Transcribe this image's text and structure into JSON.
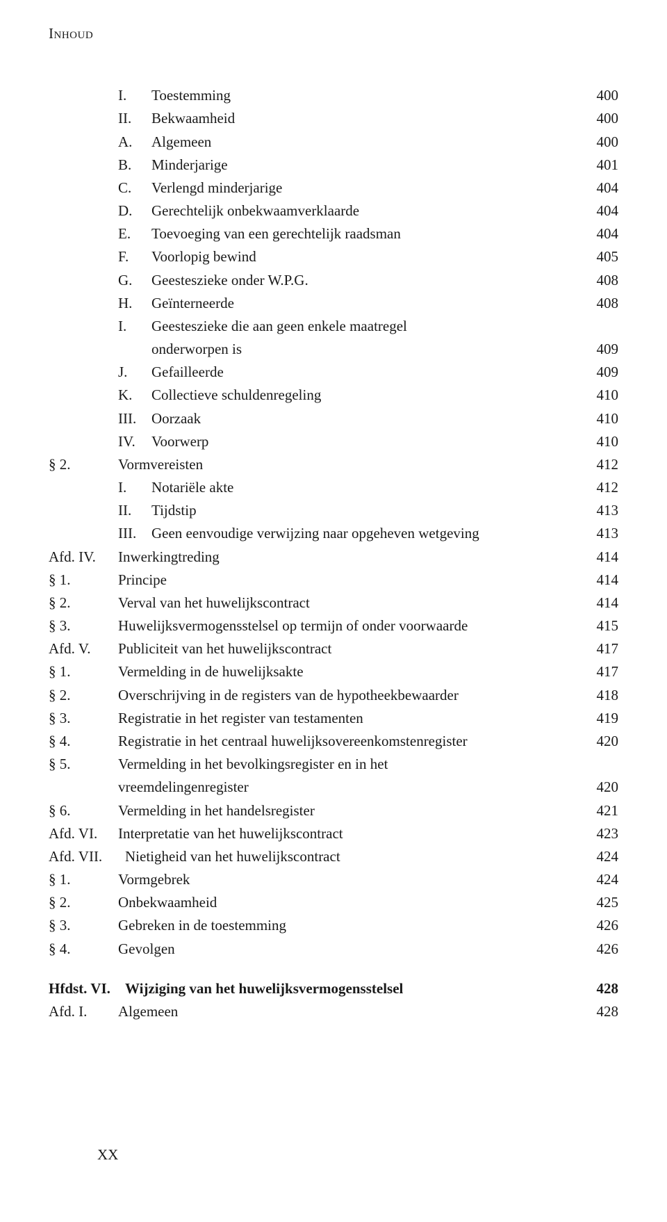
{
  "header": "Inhoud",
  "footer": "XX",
  "rows": [
    {
      "marker": "",
      "sub": "I.",
      "title": "Toestemming",
      "page": "400"
    },
    {
      "marker": "",
      "sub": "II.",
      "title": "Bekwaamheid",
      "page": "400"
    },
    {
      "marker": "",
      "sub": "A.",
      "title": "Algemeen",
      "page": "400"
    },
    {
      "marker": "",
      "sub": "B.",
      "title": "Minderjarige",
      "page": "401"
    },
    {
      "marker": "",
      "sub": "C.",
      "title": "Verlengd minderjarige",
      "page": "404"
    },
    {
      "marker": "",
      "sub": "D.",
      "title": "Gerechtelijk onbekwaamverklaarde",
      "page": "404"
    },
    {
      "marker": "",
      "sub": "E.",
      "title": "Toevoeging van een gerechtelijk raadsman",
      "page": "404"
    },
    {
      "marker": "",
      "sub": "F.",
      "title": "Voorlopig bewind",
      "page": "405"
    },
    {
      "marker": "",
      "sub": "G.",
      "title": "Geesteszieke onder W.P.G.",
      "page": "408"
    },
    {
      "marker": "",
      "sub": "H.",
      "title": "Geïnterneerde",
      "page": "408"
    },
    {
      "marker": "",
      "sub": "I.",
      "title": "Geesteszieke die aan geen enkele maatregel",
      "page": ""
    },
    {
      "marker": "",
      "sub": "",
      "title": "onderworpen is",
      "page": "409"
    },
    {
      "marker": "",
      "sub": "J.",
      "title": "Gefailleerde",
      "page": "409"
    },
    {
      "marker": "",
      "sub": "K.",
      "title": "Collectieve schuldenregeling",
      "page": "410"
    },
    {
      "marker": "",
      "sub": "III.",
      "title": "Oorzaak",
      "page": "410"
    },
    {
      "marker": "",
      "sub": "IV.",
      "title": "Voorwerp",
      "page": "410"
    },
    {
      "marker": "§ 2.",
      "sub": "",
      "title": "Vormvereisten",
      "page": "412"
    },
    {
      "marker": "",
      "sub": "I.",
      "title": "Notariële akte",
      "page": "412"
    },
    {
      "marker": "",
      "sub": "II.",
      "title": "Tijdstip",
      "page": "413"
    },
    {
      "marker": "",
      "sub": "III.",
      "title": "Geen eenvoudige verwijzing naar opgeheven wetgeving",
      "page": "413"
    },
    {
      "marker": "Afd. IV.",
      "sub": "",
      "title": "Inwerkingtreding",
      "page": "414"
    },
    {
      "marker": "§ 1.",
      "sub": "",
      "title": "Principe",
      "page": "414"
    },
    {
      "marker": "§ 2.",
      "sub": "",
      "title": "Verval van het huwelijkscontract",
      "page": "414"
    },
    {
      "marker": "§ 3.",
      "sub": "",
      "title": "Huwelijksvermogensstelsel op termijn of onder voorwaarde",
      "page": "415"
    },
    {
      "marker": "Afd. V.",
      "sub": "",
      "title": "Publiciteit van het huwelijkscontract",
      "page": "417"
    },
    {
      "marker": "§ 1.",
      "sub": "",
      "title": "Vermelding in de huwelijksakte",
      "page": "417"
    },
    {
      "marker": "§ 2.",
      "sub": "",
      "title": "Overschrijving in de registers van de hypotheekbewaarder",
      "page": "418"
    },
    {
      "marker": "§ 3.",
      "sub": "",
      "title": "Registratie in het register van testamenten",
      "page": "419"
    },
    {
      "marker": "§ 4.",
      "sub": "",
      "title": "Registratie in het centraal huwelijksovereenkomstenregister",
      "page": "420"
    },
    {
      "marker": "§ 5.",
      "sub": "",
      "title": "Vermelding in het bevolkingsregister en in het",
      "page": ""
    },
    {
      "marker": "",
      "sub": "",
      "title": "vreemdelingenregister",
      "page": "420",
      "cont": true
    },
    {
      "marker": "§ 6.",
      "sub": "",
      "title": "Vermelding in het handelsregister",
      "page": "421"
    },
    {
      "marker": "Afd. VI.",
      "sub": "",
      "title": "Interpretatie van het huwelijkscontract",
      "page": "423"
    },
    {
      "marker": "Afd. VII.",
      "sub": "",
      "title": "Nietigheid van het huwelijkscontract",
      "page": "424"
    },
    {
      "marker": "§ 1.",
      "sub": "",
      "title": "Vormgebrek",
      "page": "424"
    },
    {
      "marker": "§ 2.",
      "sub": "",
      "title": "Onbekwaamheid",
      "page": "425"
    },
    {
      "marker": "§ 3.",
      "sub": "",
      "title": "Gebreken in de toestemming",
      "page": "426"
    },
    {
      "marker": "§ 4.",
      "sub": "",
      "title": "Gevolgen",
      "page": "426"
    },
    {
      "gap": true
    },
    {
      "marker": "Hfdst. VI.",
      "sub": "",
      "title": "Wijziging van het huwelijksvermogensstelsel",
      "page": "428",
      "bold": true
    },
    {
      "marker": "Afd. I.",
      "sub": "",
      "title": "Algemeen",
      "page": "428"
    }
  ]
}
